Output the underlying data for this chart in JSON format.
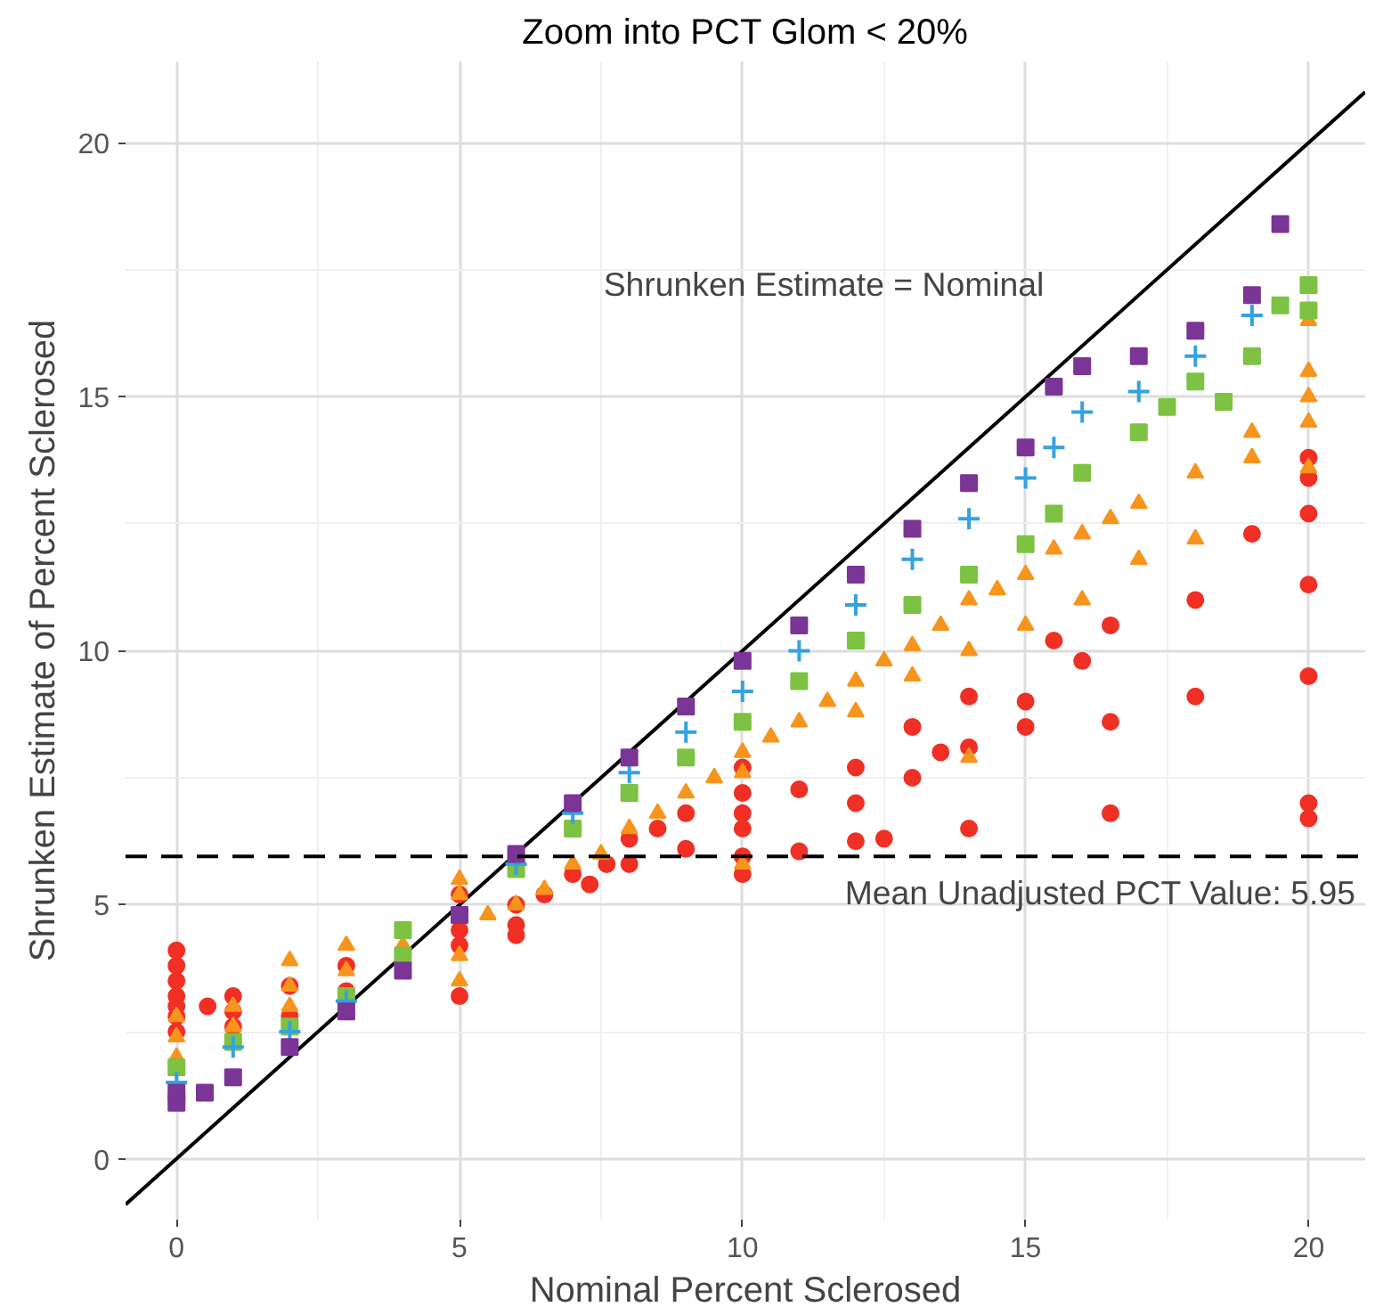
{
  "chart_data": {
    "type": "scatter",
    "title": "Zoom into PCT Glom < 20%",
    "xlabel": "Nominal Percent Sclerosed",
    "ylabel": "Shrunken Estimate of Percent Sclerosed",
    "xlim": [
      -0.9,
      21.0
    ],
    "ylim": [
      -1.2,
      21.6
    ],
    "xticks": [
      0,
      5,
      10,
      15,
      20
    ],
    "yticks": [
      0,
      5,
      10,
      15,
      20
    ],
    "grid": true,
    "annotations": [
      "Shrunken Estimate = Nominal"
    ],
    "ref_lines": [
      {
        "axis": "y",
        "value": 5.95,
        "label": "Mean Unadjusted PCT Value:  5.95",
        "color": "#000000",
        "line_style": "dashed"
      }
    ],
    "series": [
      {
        "type": "line",
        "color": "#000000",
        "x": [
          -0.9,
          21.0
        ],
        "values": [
          -0.9,
          21.0
        ]
      },
      {
        "color": "#f03024",
        "marker": "circle",
        "x": [
          0,
          0,
          0,
          0,
          0,
          0,
          0,
          0.55,
          1,
          1,
          1,
          2,
          2,
          3,
          3,
          5,
          5,
          5,
          5,
          6,
          6,
          6,
          6.5,
          7,
          7.3,
          7.6,
          8,
          8,
          8.5,
          9,
          9,
          10,
          10,
          10,
          10,
          10,
          10,
          11,
          11,
          12,
          12,
          12.5,
          12,
          13,
          13,
          13.5,
          14,
          14,
          14,
          15,
          15,
          15.5,
          16,
          16.5,
          16.5,
          16.5,
          18,
          18,
          19,
          20,
          20,
          20,
          20,
          20,
          20,
          20
        ],
        "values": [
          4.1,
          3.8,
          3.5,
          3.2,
          3.0,
          2.8,
          2.5,
          3.0,
          3.2,
          2.9,
          2.6,
          3.4,
          2.8,
          3.8,
          3.3,
          5.2,
          4.5,
          4.2,
          3.2,
          4.6,
          4.4,
          5.0,
          5.2,
          5.6,
          5.4,
          5.8,
          6.3,
          5.8,
          6.5,
          6.8,
          6.1,
          7.7,
          7.2,
          6.8,
          6.5,
          5.95,
          5.6,
          6.05,
          7.27,
          6.25,
          7.0,
          6.3,
          7.7,
          7.5,
          8.5,
          8.0,
          6.5,
          8.1,
          9.1,
          8.5,
          9.0,
          10.2,
          9.8,
          10.5,
          6.8,
          8.6,
          9.1,
          11.0,
          12.3,
          13.8,
          13.4,
          12.7,
          11.3,
          9.5,
          7.0,
          6.7
        ]
      },
      {
        "color": "#f7941d",
        "marker": "triangle",
        "x": [
          0,
          0,
          0,
          1,
          1,
          2,
          2,
          2,
          3,
          3,
          4,
          5,
          5,
          5,
          5,
          5.5,
          6,
          6.5,
          7,
          7.5,
          8,
          8.5,
          9,
          9.5,
          10,
          10,
          10,
          10.5,
          11,
          11.5,
          12,
          12,
          12.5,
          13,
          13,
          13.5,
          14,
          14,
          14,
          14.5,
          15,
          15,
          15.5,
          16,
          16,
          16.5,
          17,
          17,
          18,
          18,
          19,
          19,
          20,
          20,
          20,
          20,
          20
        ],
        "values": [
          2.4,
          2.0,
          2.8,
          2.6,
          3.0,
          3.4,
          3.9,
          3.0,
          4.2,
          3.7,
          4.2,
          5.5,
          5.2,
          4.0,
          3.5,
          4.8,
          5.0,
          5.3,
          5.8,
          6.0,
          6.5,
          6.8,
          7.2,
          7.5,
          8.0,
          7.6,
          5.8,
          8.3,
          8.6,
          9.0,
          9.4,
          8.8,
          9.8,
          10.1,
          9.5,
          10.5,
          11.0,
          10.0,
          7.9,
          11.2,
          11.5,
          10.5,
          12.0,
          12.3,
          11.0,
          12.6,
          12.9,
          11.8,
          13.5,
          12.2,
          13.8,
          14.3,
          16.5,
          15.5,
          15.0,
          14.5,
          13.6
        ]
      },
      {
        "color": "#7dc242",
        "marker": "square",
        "x": [
          0,
          1,
          2,
          3,
          4,
          4,
          6,
          7,
          8,
          9,
          10,
          11,
          12,
          13,
          14,
          15,
          15.5,
          16,
          17,
          17.5,
          18,
          18.5,
          19,
          19.5,
          20,
          20
        ],
        "values": [
          1.8,
          2.3,
          2.6,
          3.2,
          4.0,
          4.5,
          5.7,
          6.5,
          7.2,
          7.9,
          8.6,
          9.4,
          10.2,
          10.9,
          11.5,
          12.1,
          12.7,
          13.5,
          14.3,
          14.8,
          15.3,
          14.9,
          15.8,
          16.8,
          17.2,
          16.7
        ]
      },
      {
        "color": "#35a2e0",
        "marker": "cross",
        "x": [
          0,
          1,
          2,
          3,
          6,
          7,
          8,
          9,
          10,
          11,
          12,
          13,
          14,
          15,
          15.5,
          16,
          17,
          18,
          19
        ],
        "values": [
          1.5,
          2.2,
          2.5,
          3.1,
          5.8,
          6.8,
          7.6,
          8.4,
          9.2,
          10.0,
          10.9,
          11.8,
          12.6,
          13.4,
          14.0,
          14.7,
          15.1,
          15.8,
          16.6
        ]
      },
      {
        "color": "#7a3596",
        "marker": "square",
        "x": [
          0,
          0,
          0.5,
          1,
          2,
          3,
          4,
          5,
          6,
          7,
          8,
          9,
          10,
          11,
          12,
          13,
          14,
          15,
          15.5,
          16,
          17,
          18,
          19,
          19.5
        ],
        "values": [
          1.1,
          1.3,
          1.3,
          1.6,
          2.2,
          2.9,
          3.7,
          4.8,
          6.0,
          7.0,
          7.9,
          8.9,
          9.8,
          10.5,
          11.5,
          12.4,
          13.3,
          14.0,
          15.2,
          15.6,
          15.8,
          16.3,
          17.0,
          18.4
        ]
      }
    ]
  }
}
